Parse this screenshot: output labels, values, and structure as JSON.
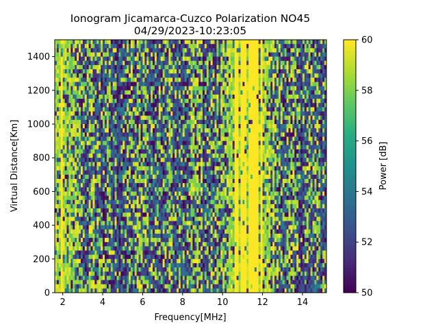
{
  "chart_data": {
    "type": "heatmap",
    "title": "Ionogram Jicamarca-Cuzco Polarization NO45",
    "subtitle": "04/29/2023-10:23:05",
    "xlabel": "Frequency[MHz]",
    "ylabel": "Virtual Distance[Km]",
    "xlim": [
      1.6,
      15.2
    ],
    "ylim": [
      0,
      1500
    ],
    "x_ticks": [
      2,
      4,
      6,
      8,
      10,
      12,
      14
    ],
    "y_ticks": [
      0,
      200,
      400,
      600,
      800,
      1000,
      1200,
      1400
    ],
    "colorbar": {
      "label": "Power [dB]",
      "range": [
        50,
        60
      ],
      "ticks": [
        50,
        52,
        54,
        56,
        58,
        60
      ],
      "colormap": "viridis"
    },
    "grid": false,
    "bands": [
      {
        "x": [
          1.6,
          2.0
        ],
        "level": 0.82
      },
      {
        "x": [
          2.0,
          2.4
        ],
        "level": 0.68
      },
      {
        "x": [
          2.4,
          3.0
        ],
        "level": 0.5
      },
      {
        "x": [
          3.0,
          3.5
        ],
        "level": 0.42
      },
      {
        "x": [
          3.5,
          4.3
        ],
        "level": 0.38
      },
      {
        "x": [
          4.3,
          5.3
        ],
        "level": 0.22
      },
      {
        "x": [
          5.3,
          6.2
        ],
        "level": 0.4
      },
      {
        "x": [
          6.2,
          7.3
        ],
        "level": 0.3
      },
      {
        "x": [
          7.3,
          8.3
        ],
        "level": 0.4
      },
      {
        "x": [
          8.3,
          9.0
        ],
        "level": 0.52
      },
      {
        "x": [
          9.0,
          9.5
        ],
        "level": 0.3
      },
      {
        "x": [
          9.5,
          10.2
        ],
        "level": 0.45
      },
      {
        "x": [
          10.2,
          10.6
        ],
        "level": 0.8
      },
      {
        "x": [
          10.6,
          11.8
        ],
        "level": 0.99
      },
      {
        "x": [
          11.8,
          12.3
        ],
        "level": 0.86
      },
      {
        "x": [
          12.3,
          12.7
        ],
        "level": 0.55
      },
      {
        "x": [
          12.7,
          13.5
        ],
        "level": 0.38
      },
      {
        "x": [
          13.5,
          14.3
        ],
        "level": 0.3
      },
      {
        "x": [
          14.3,
          15.2
        ],
        "level": 0.28
      }
    ]
  }
}
